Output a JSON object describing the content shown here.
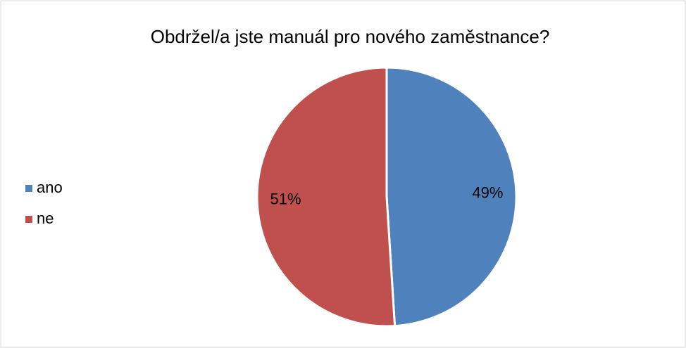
{
  "chart_data": {
    "type": "pie",
    "title": "Obdržel/a jste manuál pro nového zaměstnance?",
    "categories": [
      "ano",
      "ne"
    ],
    "values": [
      49,
      51
    ],
    "value_labels": [
      "49%",
      "51%"
    ],
    "colors": [
      "#4f81bd",
      "#c0504d"
    ],
    "legend": "left"
  }
}
